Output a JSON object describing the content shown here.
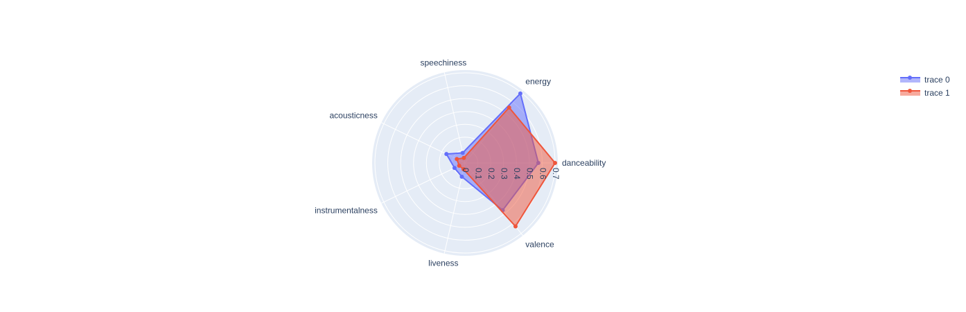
{
  "chart_data": {
    "type": "radar",
    "categories": [
      "danceability",
      "energy",
      "speechiness",
      "acousticness",
      "instrumentalness",
      "liveness",
      "valence"
    ],
    "series": [
      {
        "name": "trace 0",
        "values": [
          0.57,
          0.69,
          0.08,
          0.16,
          0.09,
          0.11,
          0.47
        ],
        "color": "#636efa"
      },
      {
        "name": "trace 1",
        "values": [
          0.7,
          0.55,
          0.04,
          0.07,
          0.05,
          0.05,
          0.63
        ],
        "color": "#ef553b"
      }
    ],
    "radial_ticks": [
      "0",
      "0.1",
      "0.2",
      "0.3",
      "0.4",
      "0.5",
      "0.6",
      "0.7"
    ],
    "radial_range": [
      0,
      0.7
    ],
    "grid": true,
    "legend_position": "top-right",
    "background": "#e5ecf6"
  }
}
